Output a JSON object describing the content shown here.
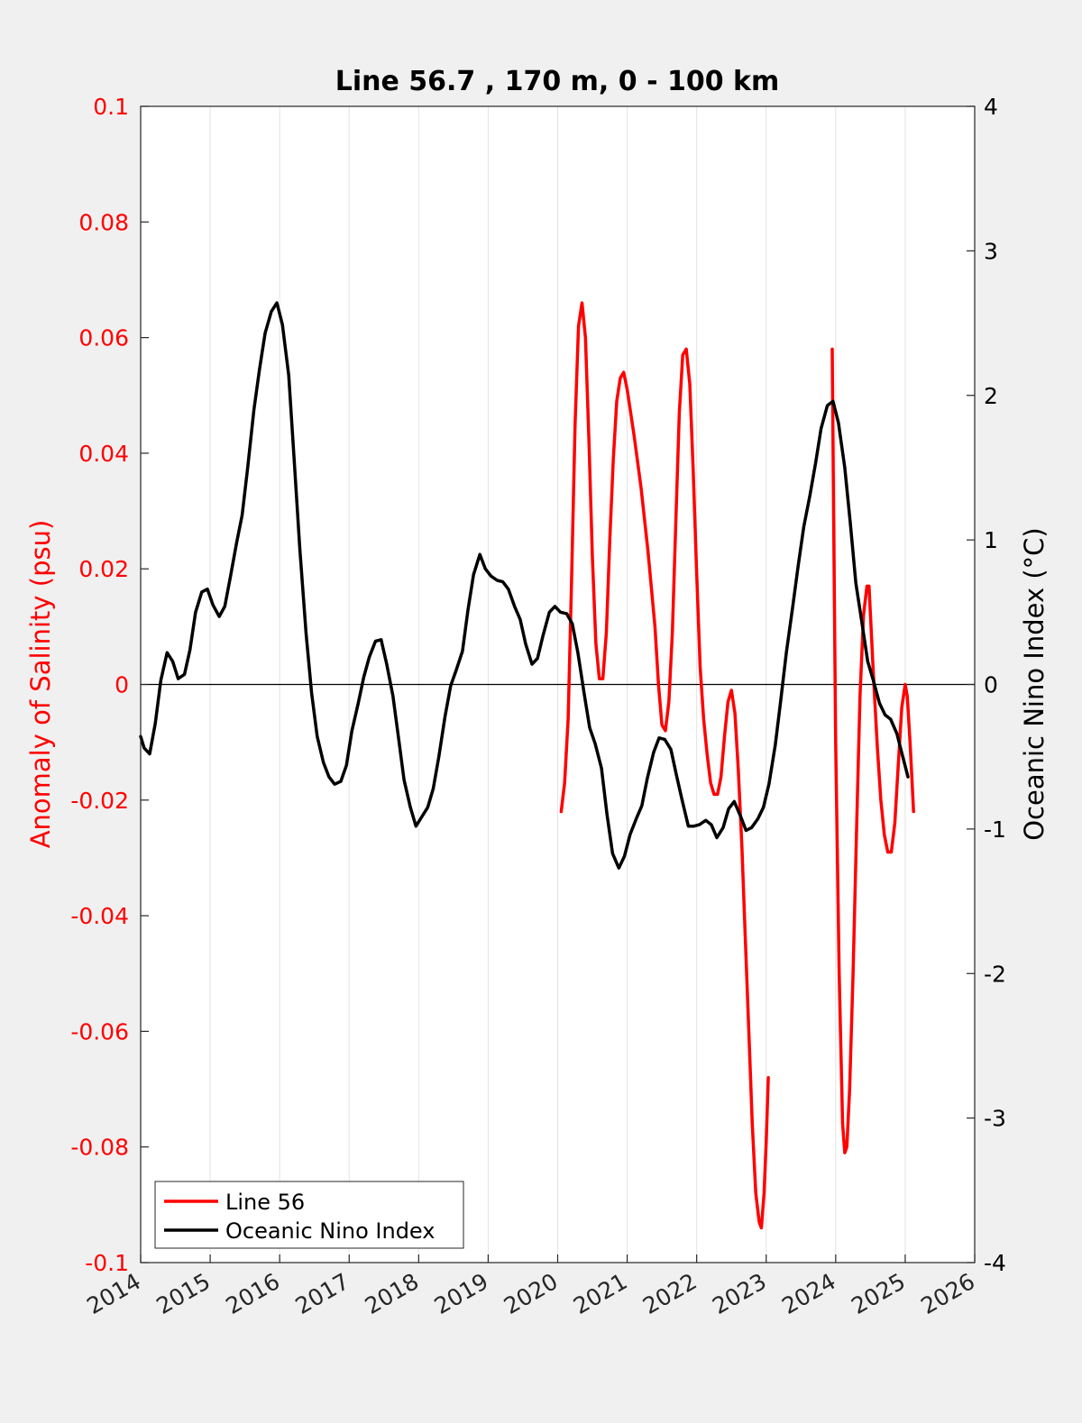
{
  "chart_data": {
    "type": "line",
    "title": "Line 56.7 , 170 m, 0 - 100 km",
    "xlim": [
      2014,
      2026
    ],
    "x_ticks": [
      "2014",
      "2015",
      "2016",
      "2017",
      "2018",
      "2019",
      "2020",
      "2021",
      "2022",
      "2023",
      "2024",
      "2025",
      "2026"
    ],
    "x_grid": true,
    "left_axis": {
      "label": "Anomaly of Salinity (psu)",
      "ylim": [
        -0.1,
        0.1
      ],
      "ticks": [
        "-0.1",
        "-0.08",
        "-0.06",
        "-0.04",
        "-0.02",
        "0",
        "0.02",
        "0.04",
        "0.06",
        "0.08",
        "0.1"
      ],
      "color": "#ff0000"
    },
    "right_axis": {
      "label": "Oceanic Nino Index (°C)",
      "ylim": [
        -4,
        4
      ],
      "ticks": [
        "-4",
        "-3",
        "-2",
        "-1",
        "0",
        "1",
        "2",
        "3",
        "4"
      ],
      "color": "#000000"
    },
    "zero_line": true,
    "legend_position": "bottom-left",
    "series": [
      {
        "name": "Line 56",
        "axis": "left",
        "color": "#ff0000",
        "segments": [
          [
            [
              2020.05,
              -0.022
            ],
            [
              2020.1,
              -0.017
            ],
            [
              2020.15,
              -0.006
            ],
            [
              2020.2,
              0.018
            ],
            [
              2020.25,
              0.045
            ],
            [
              2020.3,
              0.062
            ],
            [
              2020.35,
              0.066
            ],
            [
              2020.4,
              0.06
            ],
            [
              2020.45,
              0.042
            ],
            [
              2020.5,
              0.022
            ],
            [
              2020.55,
              0.007
            ],
            [
              2020.6,
              0.001
            ],
            [
              2020.65,
              0.001
            ],
            [
              2020.7,
              0.009
            ],
            [
              2020.75,
              0.025
            ],
            [
              2020.8,
              0.039
            ],
            [
              2020.85,
              0.049
            ],
            [
              2020.9,
              0.053
            ],
            [
              2020.95,
              0.054
            ],
            [
              2021.0,
              0.051
            ],
            [
              2021.1,
              0.043
            ],
            [
              2021.2,
              0.034
            ],
            [
              2021.3,
              0.023
            ],
            [
              2021.4,
              0.01
            ],
            [
              2021.45,
              0.0
            ],
            [
              2021.5,
              -0.007
            ],
            [
              2021.55,
              -0.008
            ],
            [
              2021.6,
              -0.003
            ],
            [
              2021.65,
              0.009
            ],
            [
              2021.7,
              0.028
            ],
            [
              2021.75,
              0.047
            ],
            [
              2021.8,
              0.057
            ],
            [
              2021.85,
              0.058
            ],
            [
              2021.9,
              0.052
            ],
            [
              2021.95,
              0.037
            ],
            [
              2022.0,
              0.019
            ],
            [
              2022.05,
              0.003
            ],
            [
              2022.1,
              -0.006
            ],
            [
              2022.15,
              -0.012
            ],
            [
              2022.2,
              -0.017
            ],
            [
              2022.25,
              -0.019
            ],
            [
              2022.3,
              -0.019
            ],
            [
              2022.35,
              -0.016
            ],
            [
              2022.4,
              -0.009
            ],
            [
              2022.45,
              -0.003
            ],
            [
              2022.5,
              -0.001
            ],
            [
              2022.55,
              -0.005
            ],
            [
              2022.6,
              -0.015
            ],
            [
              2022.65,
              -0.028
            ],
            [
              2022.7,
              -0.044
            ],
            [
              2022.75,
              -0.06
            ],
            [
              2022.8,
              -0.076
            ],
            [
              2022.85,
              -0.088
            ],
            [
              2022.9,
              -0.093
            ],
            [
              2022.93,
              -0.094
            ],
            [
              2022.97,
              -0.088
            ],
            [
              2023.0,
              -0.079
            ],
            [
              2023.03,
              -0.068
            ]
          ],
          [
            [
              2023.95,
              0.058
            ],
            [
              2023.97,
              0.03
            ],
            [
              2024.0,
              -0.01
            ],
            [
              2024.05,
              -0.05
            ],
            [
              2024.1,
              -0.076
            ],
            [
              2024.13,
              -0.081
            ],
            [
              2024.16,
              -0.08
            ],
            [
              2024.2,
              -0.07
            ],
            [
              2024.25,
              -0.05
            ],
            [
              2024.3,
              -0.025
            ],
            [
              2024.35,
              -0.002
            ],
            [
              2024.4,
              0.012
            ],
            [
              2024.45,
              0.017
            ],
            [
              2024.48,
              0.017
            ],
            [
              2024.5,
              0.012
            ],
            [
              2024.55,
              0.0
            ],
            [
              2024.6,
              -0.011
            ],
            [
              2024.65,
              -0.02
            ],
            [
              2024.7,
              -0.026
            ],
            [
              2024.75,
              -0.029
            ],
            [
              2024.8,
              -0.029
            ],
            [
              2024.85,
              -0.024
            ],
            [
              2024.9,
              -0.014
            ],
            [
              2024.95,
              -0.004
            ],
            [
              2025.0,
              0.0
            ],
            [
              2025.03,
              -0.002
            ],
            [
              2025.07,
              -0.01
            ],
            [
              2025.1,
              -0.017
            ],
            [
              2025.12,
              -0.022
            ]
          ]
        ]
      },
      {
        "name": "Oceanic Nino Index",
        "axis": "right",
        "color": "#000000",
        "segments": [
          [
            [
              2014.0,
              -0.36
            ],
            [
              2014.05,
              -0.44
            ],
            [
              2014.13,
              -0.48
            ],
            [
              2014.21,
              -0.27
            ],
            [
              2014.29,
              0.03
            ],
            [
              2014.38,
              0.22
            ],
            [
              2014.46,
              0.16
            ],
            [
              2014.54,
              0.04
            ],
            [
              2014.63,
              0.07
            ],
            [
              2014.71,
              0.24
            ],
            [
              2014.79,
              0.5
            ],
            [
              2014.88,
              0.64
            ],
            [
              2014.96,
              0.66
            ],
            [
              2015.04,
              0.55
            ],
            [
              2015.13,
              0.47
            ],
            [
              2015.21,
              0.54
            ],
            [
              2015.29,
              0.74
            ],
            [
              2015.38,
              0.98
            ],
            [
              2015.46,
              1.17
            ],
            [
              2015.54,
              1.5
            ],
            [
              2015.63,
              1.9
            ],
            [
              2015.71,
              2.18
            ],
            [
              2015.79,
              2.43
            ],
            [
              2015.88,
              2.58
            ],
            [
              2015.96,
              2.64
            ],
            [
              2016.04,
              2.49
            ],
            [
              2016.13,
              2.14
            ],
            [
              2016.21,
              1.54
            ],
            [
              2016.29,
              0.94
            ],
            [
              2016.38,
              0.35
            ],
            [
              2016.46,
              -0.06
            ],
            [
              2016.54,
              -0.36
            ],
            [
              2016.63,
              -0.54
            ],
            [
              2016.71,
              -0.64
            ],
            [
              2016.79,
              -0.69
            ],
            [
              2016.88,
              -0.67
            ],
            [
              2016.96,
              -0.56
            ],
            [
              2017.04,
              -0.32
            ],
            [
              2017.13,
              -0.13
            ],
            [
              2017.21,
              0.05
            ],
            [
              2017.29,
              0.19
            ],
            [
              2017.38,
              0.3
            ],
            [
              2017.46,
              0.31
            ],
            [
              2017.54,
              0.14
            ],
            [
              2017.63,
              -0.08
            ],
            [
              2017.71,
              -0.37
            ],
            [
              2017.79,
              -0.66
            ],
            [
              2017.88,
              -0.85
            ],
            [
              2017.96,
              -0.98
            ],
            [
              2018.04,
              -0.92
            ],
            [
              2018.13,
              -0.85
            ],
            [
              2018.21,
              -0.72
            ],
            [
              2018.29,
              -0.5
            ],
            [
              2018.38,
              -0.22
            ],
            [
              2018.46,
              -0.01
            ],
            [
              2018.54,
              0.1
            ],
            [
              2018.63,
              0.23
            ],
            [
              2018.71,
              0.52
            ],
            [
              2018.79,
              0.76
            ],
            [
              2018.88,
              0.9
            ],
            [
              2018.96,
              0.8
            ],
            [
              2019.04,
              0.75
            ],
            [
              2019.13,
              0.72
            ],
            [
              2019.21,
              0.71
            ],
            [
              2019.29,
              0.66
            ],
            [
              2019.38,
              0.54
            ],
            [
              2019.46,
              0.45
            ],
            [
              2019.54,
              0.28
            ],
            [
              2019.63,
              0.14
            ],
            [
              2019.71,
              0.18
            ],
            [
              2019.79,
              0.34
            ],
            [
              2019.88,
              0.5
            ],
            [
              2019.96,
              0.54
            ],
            [
              2020.04,
              0.5
            ],
            [
              2020.13,
              0.49
            ],
            [
              2020.21,
              0.42
            ],
            [
              2020.29,
              0.22
            ],
            [
              2020.38,
              -0.06
            ],
            [
              2020.46,
              -0.3
            ],
            [
              2020.54,
              -0.41
            ],
            [
              2020.63,
              -0.58
            ],
            [
              2020.71,
              -0.9
            ],
            [
              2020.79,
              -1.17
            ],
            [
              2020.88,
              -1.27
            ],
            [
              2020.96,
              -1.19
            ],
            [
              2021.04,
              -1.04
            ],
            [
              2021.13,
              -0.93
            ],
            [
              2021.21,
              -0.84
            ],
            [
              2021.29,
              -0.65
            ],
            [
              2021.38,
              -0.47
            ],
            [
              2021.46,
              -0.37
            ],
            [
              2021.54,
              -0.38
            ],
            [
              2021.63,
              -0.45
            ],
            [
              2021.71,
              -0.63
            ],
            [
              2021.79,
              -0.8
            ],
            [
              2021.88,
              -0.98
            ],
            [
              2021.96,
              -0.98
            ],
            [
              2022.04,
              -0.97
            ],
            [
              2022.13,
              -0.94
            ],
            [
              2022.21,
              -0.97
            ],
            [
              2022.29,
              -1.06
            ],
            [
              2022.38,
              -0.99
            ],
            [
              2022.46,
              -0.86
            ],
            [
              2022.54,
              -0.81
            ],
            [
              2022.63,
              -0.91
            ],
            [
              2022.71,
              -1.01
            ],
            [
              2022.79,
              -0.99
            ],
            [
              2022.88,
              -0.93
            ],
            [
              2022.96,
              -0.85
            ],
            [
              2023.04,
              -0.69
            ],
            [
              2023.13,
              -0.42
            ],
            [
              2023.21,
              -0.11
            ],
            [
              2023.29,
              0.22
            ],
            [
              2023.38,
              0.53
            ],
            [
              2023.46,
              0.82
            ],
            [
              2023.54,
              1.09
            ],
            [
              2023.63,
              1.31
            ],
            [
              2023.71,
              1.53
            ],
            [
              2023.79,
              1.77
            ],
            [
              2023.88,
              1.93
            ],
            [
              2023.96,
              1.96
            ],
            [
              2024.04,
              1.81
            ],
            [
              2024.13,
              1.5
            ],
            [
              2024.21,
              1.12
            ],
            [
              2024.29,
              0.7
            ],
            [
              2024.38,
              0.42
            ],
            [
              2024.46,
              0.16
            ],
            [
              2024.54,
              0.03
            ],
            [
              2024.63,
              -0.13
            ],
            [
              2024.71,
              -0.21
            ],
            [
              2024.79,
              -0.24
            ],
            [
              2024.88,
              -0.34
            ],
            [
              2024.96,
              -0.49
            ],
            [
              2025.04,
              -0.64
            ]
          ]
        ]
      }
    ]
  }
}
